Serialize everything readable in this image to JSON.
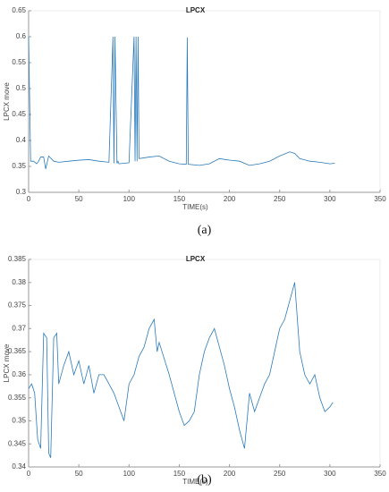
{
  "chart_data": [
    {
      "type": "line",
      "title": "LPCX",
      "ylabel": "LPCX move",
      "xlabel": "TIME(s)",
      "caption": "(a)",
      "color": "#2a7ab9",
      "xlim": [
        0,
        350
      ],
      "xticks": [
        0,
        50,
        100,
        150,
        200,
        250,
        300,
        350
      ],
      "ylim": [
        0.3,
        0.65
      ],
      "yticks": [
        0.3,
        0.35,
        0.4,
        0.45,
        0.5,
        0.55,
        0.6,
        0.65
      ],
      "x": [
        0,
        2,
        5,
        8,
        10,
        12,
        15,
        17,
        20,
        25,
        30,
        40,
        50,
        60,
        70,
        80,
        84,
        85,
        86,
        88,
        89,
        90,
        100,
        105,
        106,
        107,
        108,
        109,
        110,
        120,
        130,
        140,
        150,
        157,
        158,
        159,
        170,
        180,
        190,
        200,
        210,
        220,
        230,
        240,
        250,
        260,
        265,
        270,
        280,
        290,
        300,
        305
      ],
      "values": [
        0.6,
        0.36,
        0.36,
        0.355,
        0.36,
        0.368,
        0.368,
        0.345,
        0.37,
        0.36,
        0.358,
        0.36,
        0.362,
        0.363,
        0.36,
        0.358,
        0.6,
        0.356,
        0.6,
        0.356,
        0.36,
        0.355,
        0.357,
        0.6,
        0.36,
        0.6,
        0.36,
        0.6,
        0.365,
        0.368,
        0.37,
        0.36,
        0.355,
        0.354,
        0.598,
        0.354,
        0.352,
        0.355,
        0.365,
        0.362,
        0.36,
        0.352,
        0.355,
        0.36,
        0.37,
        0.378,
        0.375,
        0.365,
        0.36,
        0.358,
        0.355,
        0.356
      ]
    },
    {
      "type": "line",
      "title": "LPCX",
      "ylabel": "LPCX move",
      "xlabel": "TIME(s)",
      "caption": "(b)",
      "color": "#2a7ab9",
      "xlim": [
        0,
        350
      ],
      "xticks": [
        0,
        50,
        100,
        150,
        200,
        250,
        300,
        350
      ],
      "ylim": [
        0.34,
        0.385
      ],
      "yticks": [
        0.34,
        0.345,
        0.35,
        0.355,
        0.36,
        0.365,
        0.37,
        0.375,
        0.38,
        0.385
      ],
      "x": [
        0,
        3,
        6,
        9,
        12,
        15,
        18,
        20,
        22,
        25,
        28,
        30,
        35,
        40,
        45,
        50,
        55,
        60,
        65,
        70,
        75,
        80,
        85,
        90,
        95,
        100,
        105,
        110,
        115,
        120,
        125,
        128,
        130,
        140,
        150,
        155,
        160,
        165,
        170,
        175,
        180,
        185,
        190,
        195,
        200,
        205,
        210,
        215,
        220,
        225,
        230,
        235,
        240,
        245,
        250,
        255,
        260,
        265,
        270,
        275,
        280,
        285,
        290,
        295,
        300,
        303
      ],
      "values": [
        0.357,
        0.358,
        0.356,
        0.346,
        0.344,
        0.369,
        0.368,
        0.343,
        0.342,
        0.368,
        0.369,
        0.358,
        0.362,
        0.365,
        0.36,
        0.363,
        0.358,
        0.362,
        0.356,
        0.36,
        0.36,
        0.358,
        0.356,
        0.353,
        0.35,
        0.358,
        0.36,
        0.364,
        0.366,
        0.37,
        0.372,
        0.365,
        0.367,
        0.36,
        0.352,
        0.349,
        0.35,
        0.352,
        0.36,
        0.365,
        0.368,
        0.37,
        0.366,
        0.362,
        0.357,
        0.353,
        0.348,
        0.344,
        0.356,
        0.352,
        0.355,
        0.358,
        0.36,
        0.365,
        0.37,
        0.372,
        0.376,
        0.38,
        0.365,
        0.36,
        0.358,
        0.36,
        0.355,
        0.352,
        0.353,
        0.354
      ]
    }
  ]
}
